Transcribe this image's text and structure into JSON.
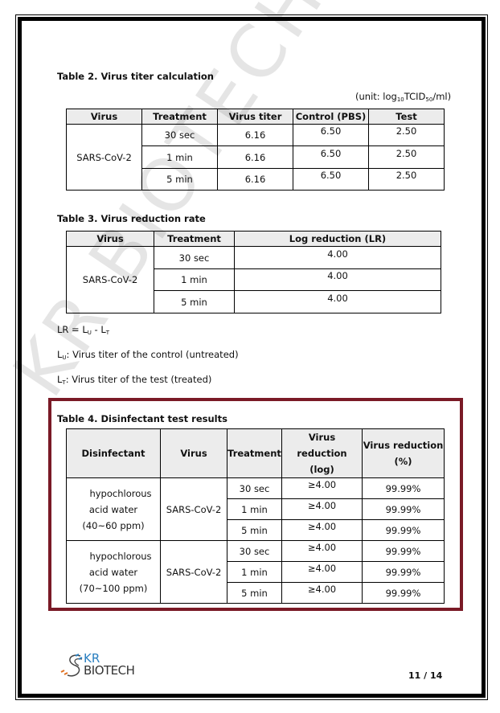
{
  "table2": {
    "title": "Table 2. Virus titer calculation",
    "unit_prefix": "(unit: log",
    "unit_sub1": "10",
    "unit_mid": "TCID",
    "unit_sub2": "50",
    "unit_suffix": "/ml)",
    "headers": [
      "Virus",
      "Treatment",
      "Virus titer",
      "Control (PBS)",
      "Test"
    ],
    "virus": "SARS-CoV-2",
    "rows": [
      {
        "treatment": "30 sec",
        "titer": "6.16",
        "control": "6.50",
        "test": "2.50"
      },
      {
        "treatment": "1 min",
        "titer": "6.16",
        "control": "6.50",
        "test": "2.50"
      },
      {
        "treatment": "5 min",
        "titer": "6.16",
        "control": "6.50",
        "test": "2.50"
      }
    ]
  },
  "table3": {
    "title": "Table 3. Virus reduction rate",
    "headers": [
      "Virus",
      "Treatment",
      "Log reduction (LR)"
    ],
    "virus": "SARS-CoV-2",
    "rows": [
      {
        "treatment": "30 sec",
        "lr": "4.00"
      },
      {
        "treatment": "1 min",
        "lr": "4.00"
      },
      {
        "treatment": "5 min",
        "lr": "4.00"
      }
    ]
  },
  "formula": {
    "lr_a": "LR = L",
    "lr_sub_u": "U",
    "lr_b": " - L",
    "lr_sub_t": "T",
    "lu_a": "L",
    "lu_sub": "U",
    "lu_b": ": Virus titer of the control (untreated)",
    "lt_a": "L",
    "lt_sub": "T",
    "lt_b": ": Virus titer of the test (treated)"
  },
  "table4": {
    "title": "Table 4. Disinfectant test results",
    "headers": [
      "Disinfectant",
      "Virus",
      "Treatment",
      "Virus reduction",
      "(log)",
      "Virus reduction",
      "(%)"
    ],
    "groups": [
      {
        "disinfectant_l1": "hypochlorous",
        "disinfectant_l2": "acid water",
        "disinfectant_l3": "(40~60 ppm)",
        "virus": "SARS-CoV-2",
        "rows": [
          {
            "treatment": "30 sec",
            "log": "≥4.00",
            "pct": "99.99%"
          },
          {
            "treatment": "1 min",
            "log": "≥4.00",
            "pct": "99.99%"
          },
          {
            "treatment": "5 min",
            "log": "≥4.00",
            "pct": "99.99%"
          }
        ]
      },
      {
        "disinfectant_l1": "hypochlorous",
        "disinfectant_l2": "acid water",
        "disinfectant_l3": "(70~100 ppm)",
        "virus": "SARS-CoV-2",
        "rows": [
          {
            "treatment": "30 sec",
            "log": "≥4.00",
            "pct": "99.99%"
          },
          {
            "treatment": "1 min",
            "log": "≥4.00",
            "pct": "99.99%"
          },
          {
            "treatment": "5 min",
            "log": "≥4.00",
            "pct": "99.99%"
          }
        ]
      }
    ],
    "highlight_color": "#7a1a26"
  },
  "watermark": "KR BIOTECH",
  "footer": {
    "logo_top": "KR",
    "logo_bottom": "BIOTECH",
    "page_current": "11",
    "page_sep": " / ",
    "page_total": "14"
  }
}
